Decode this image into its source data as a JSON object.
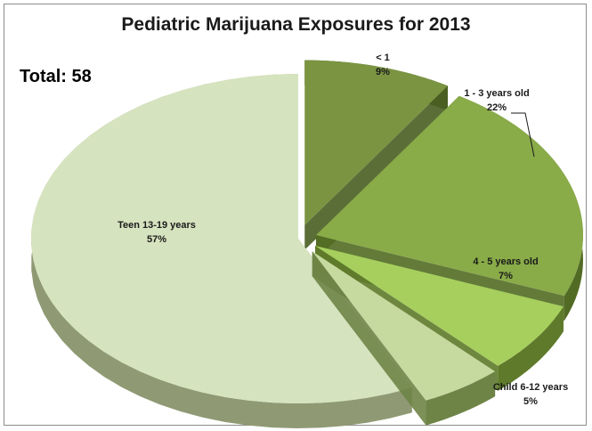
{
  "chart_data": {
    "type": "pie",
    "title": "Pediatric Marijuana Exposures for 2013",
    "annotation": "Total: 58",
    "slices": [
      {
        "label": "Teen 13-19 years",
        "pct_label": "57%",
        "value": 57,
        "color": "#d6e3bf",
        "side": "#8f9a74"
      },
      {
        "label": "< 1",
        "pct_label": "9%",
        "value": 9,
        "color": "#7a9441",
        "side": "#4a5e22"
      },
      {
        "label": "1 - 3 years old",
        "pct_label": "22%",
        "value": 22,
        "color": "#89ab48",
        "side": "#526b24"
      },
      {
        "label": "4 - 5 years old",
        "pct_label": "7%",
        "value": 7,
        "color": "#a6cf5e",
        "side": "#5e7a2a"
      },
      {
        "label": "Child 6-12 years",
        "pct_label": "5%",
        "value": 5,
        "color": "#c6d99f",
        "side": "#6e8446"
      }
    ]
  }
}
